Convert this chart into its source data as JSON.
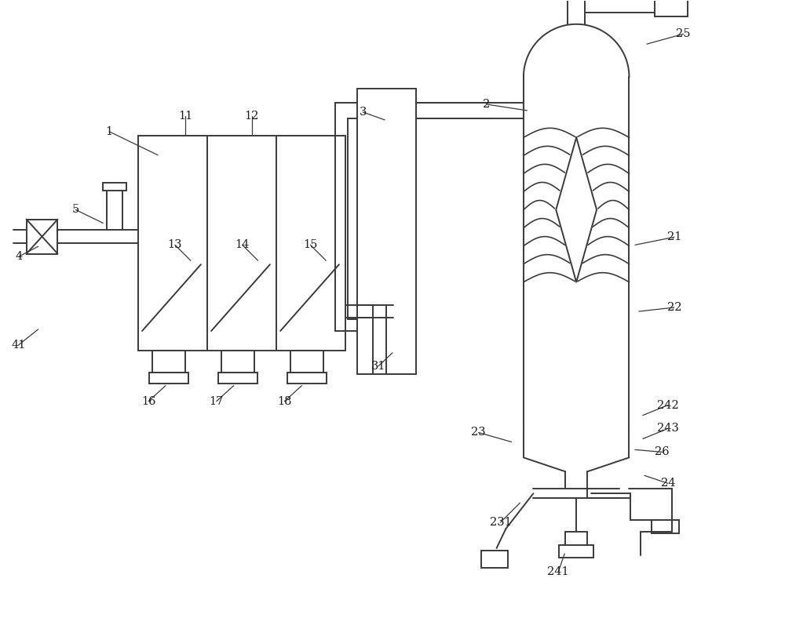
{
  "bg_color": "#ffffff",
  "line_color": "#3a3a3a",
  "lw": 1.4,
  "fig_w": 10.0,
  "fig_h": 8.02
}
